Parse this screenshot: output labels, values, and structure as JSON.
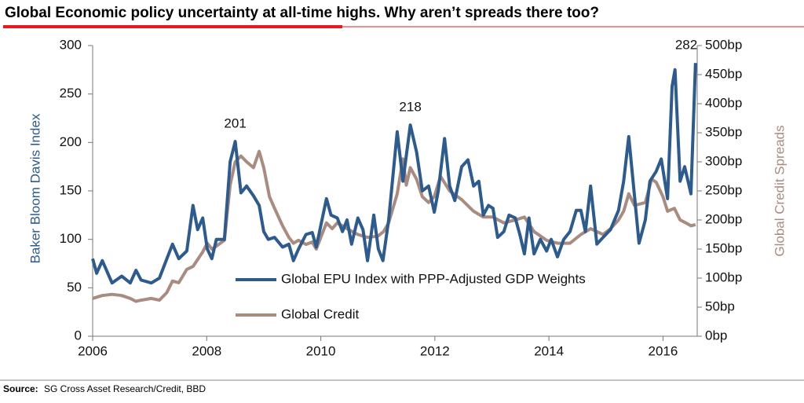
{
  "chart_data": {
    "type": "line",
    "title": "Global Economic policy uncertainty at all-time highs. Why aren’t spreads there too?",
    "source_label": "Source:",
    "source": "SG Cross Asset Research/Credit, BBD",
    "ylabel": "Baker Bloom Davis Index",
    "y2label": "Global Credit Spreads",
    "xlim": [
      2006,
      2016.6
    ],
    "xticks": [
      2006,
      2008,
      2010,
      2012,
      2014,
      2016
    ],
    "ylim": [
      0,
      300
    ],
    "yticks": [
      0,
      50,
      100,
      150,
      200,
      250,
      300
    ],
    "y2lim": [
      0,
      500
    ],
    "y2ticks": [
      {
        "value": 0,
        "label": "0bp"
      },
      {
        "value": 50,
        "label": "50bp"
      },
      {
        "value": 100,
        "label": "100bp"
      },
      {
        "value": 150,
        "label": "150bp"
      },
      {
        "value": 200,
        "label": "200bp"
      },
      {
        "value": 250,
        "label": "250bp"
      },
      {
        "value": 300,
        "label": "300bp"
      },
      {
        "value": 350,
        "label": "350bp"
      },
      {
        "value": 400,
        "label": "400bp"
      },
      {
        "value": 450,
        "label": "450bp"
      },
      {
        "value": 500,
        "label": "500bp"
      }
    ],
    "series": [
      {
        "name": "Global EPU Index with PPP-Adjusted GDP Weights",
        "color": "#2d5b8e",
        "axis": "y",
        "x": [
          2006.0,
          2006.07,
          2006.17,
          2006.34,
          2006.51,
          2006.66,
          2006.76,
          2006.85,
          2007.03,
          2007.17,
          2007.4,
          2007.51,
          2007.65,
          2007.76,
          2007.84,
          2007.93,
          2008.01,
          2008.09,
          2008.17,
          2008.31,
          2008.41,
          2008.5,
          2008.6,
          2008.7,
          2008.82,
          2008.92,
          2009.0,
          2009.08,
          2009.19,
          2009.33,
          2009.44,
          2009.52,
          2009.61,
          2009.74,
          2009.85,
          2009.92,
          2010.1,
          2010.18,
          2010.29,
          2010.38,
          2010.46,
          2010.54,
          2010.65,
          2010.74,
          2010.82,
          2010.93,
          2011.01,
          2011.09,
          2011.19,
          2011.34,
          2011.44,
          2011.57,
          2011.68,
          2011.78,
          2011.89,
          2011.99,
          2012.06,
          2012.17,
          2012.26,
          2012.35,
          2012.47,
          2012.58,
          2012.68,
          2012.77,
          2012.85,
          2012.94,
          2013.02,
          2013.1,
          2013.21,
          2013.3,
          2013.41,
          2013.49,
          2013.57,
          2013.65,
          2013.74,
          2013.85,
          2013.96,
          2014.04,
          2014.15,
          2014.26,
          2014.37,
          2014.48,
          2014.56,
          2014.64,
          2014.73,
          2014.84,
          2014.95,
          2015.08,
          2015.22,
          2015.31,
          2015.4,
          2015.5,
          2015.58,
          2015.69,
          2015.77,
          2015.88,
          2015.97,
          2016.08,
          2016.16,
          2016.21,
          2016.3,
          2016.38,
          2016.49,
          2016.57
        ],
        "values": [
          80,
          65,
          78,
          55,
          62,
          55,
          68,
          58,
          55,
          60,
          95,
          80,
          88,
          135,
          110,
          122,
          90,
          80,
          100,
          100,
          180,
          201,
          148,
          155,
          145,
          135,
          108,
          100,
          102,
          92,
          95,
          78,
          90,
          105,
          107,
          92,
          142,
          125,
          122,
          108,
          120,
          95,
          122,
          110,
          78,
          125,
          90,
          78,
          120,
          211,
          160,
          218,
          190,
          150,
          155,
          128,
          150,
          204,
          155,
          140,
          175,
          182,
          155,
          160,
          125,
          135,
          132,
          102,
          108,
          125,
          122,
          105,
          85,
          122,
          85,
          100,
          88,
          100,
          82,
          100,
          108,
          130,
          130,
          108,
          155,
          95,
          102,
          110,
          130,
          160,
          206,
          145,
          96,
          120,
          160,
          170,
          183,
          142,
          258,
          275,
          160,
          175,
          147,
          282
        ],
        "value_labels": [
          null,
          null,
          null,
          null,
          null,
          null,
          null,
          null,
          null,
          null,
          null,
          null,
          null,
          null,
          null,
          null,
          null,
          null,
          null,
          null,
          null,
          "201",
          null,
          null,
          null,
          null,
          null,
          null,
          null,
          null,
          null,
          null,
          null,
          null,
          null,
          null,
          null,
          null,
          null,
          null,
          null,
          null,
          null,
          null,
          null,
          null,
          null,
          null,
          null,
          null,
          null,
          "218",
          null,
          null,
          null,
          null,
          null,
          null,
          null,
          null,
          null,
          null,
          null,
          null,
          null,
          null,
          null,
          null,
          null,
          null,
          null,
          null,
          null,
          null,
          null,
          null,
          null,
          null,
          null,
          null,
          null,
          null,
          null,
          null,
          null,
          null,
          null,
          null,
          null,
          null,
          null,
          null,
          null,
          null,
          null,
          null,
          null,
          null,
          null,
          null,
          null,
          null,
          null,
          "282"
        ]
      },
      {
        "name": "Global Credit",
        "color": "#a98b7f",
        "axis": "y2",
        "x": [
          2006.0,
          2006.17,
          2006.34,
          2006.51,
          2006.66,
          2006.76,
          2006.85,
          2007.03,
          2007.17,
          2007.3,
          2007.4,
          2007.51,
          2007.65,
          2007.76,
          2007.93,
          2008.01,
          2008.09,
          2008.17,
          2008.31,
          2008.41,
          2008.5,
          2008.6,
          2008.7,
          2008.82,
          2008.92,
          2009.0,
          2009.1,
          2009.19,
          2009.33,
          2009.44,
          2009.52,
          2009.61,
          2009.74,
          2009.85,
          2009.92,
          2010.1,
          2010.2,
          2010.29,
          2010.46,
          2010.65,
          2010.82,
          2011.0,
          2011.1,
          2011.19,
          2011.34,
          2011.44,
          2011.5,
          2011.57,
          2011.68,
          2011.78,
          2011.89,
          2011.99,
          2012.1,
          2012.26,
          2012.47,
          2012.68,
          2012.85,
          2013.02,
          2013.21,
          2013.41,
          2013.57,
          2013.74,
          2013.96,
          2014.15,
          2014.37,
          2014.56,
          2014.73,
          2014.84,
          2014.95,
          2015.08,
          2015.22,
          2015.31,
          2015.4,
          2015.5,
          2015.69,
          2015.8,
          2015.88,
          2016.0,
          2016.08,
          2016.2,
          2016.3,
          2016.4,
          2016.49,
          2016.57
        ],
        "values": [
          65,
          70,
          72,
          70,
          65,
          60,
          62,
          65,
          62,
          75,
          95,
          92,
          115,
          120,
          145,
          160,
          150,
          155,
          165,
          260,
          300,
          310,
          300,
          290,
          318,
          290,
          240,
          220,
          190,
          170,
          160,
          165,
          158,
          162,
          150,
          195,
          185,
          195,
          185,
          175,
          170,
          172,
          180,
          195,
          245,
          305,
          260,
          290,
          270,
          240,
          230,
          240,
          275,
          250,
          235,
          215,
          205,
          205,
          195,
          200,
          205,
          180,
          165,
          160,
          160,
          175,
          185,
          180,
          175,
          185,
          200,
          215,
          245,
          225,
          230,
          270,
          265,
          240,
          215,
          220,
          200,
          195,
          190,
          192
        ]
      }
    ]
  }
}
